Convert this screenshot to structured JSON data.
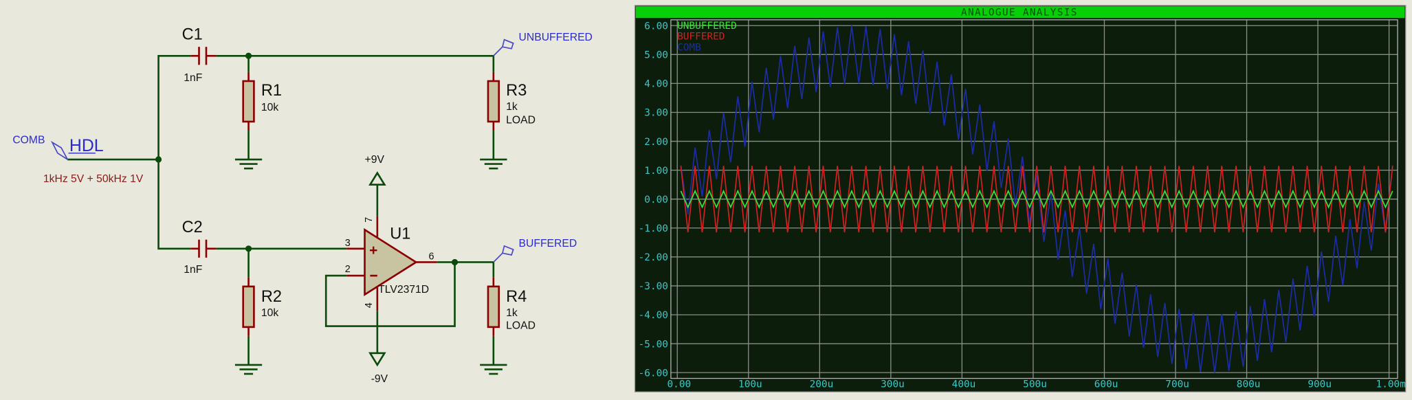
{
  "schematic": {
    "components": [
      {
        "ref": "C1",
        "value": "1nF"
      },
      {
        "ref": "R1",
        "value": "10k"
      },
      {
        "ref": "R3",
        "value": "1k",
        "note": "LOAD"
      },
      {
        "ref": "C2",
        "value": "1nF"
      },
      {
        "ref": "R2",
        "value": "10k"
      },
      {
        "ref": "U1",
        "value": "TLV2371D",
        "pins": [
          "7",
          "3",
          "2",
          "6",
          "4"
        ]
      },
      {
        "ref": "R4",
        "value": "1k",
        "note": "LOAD"
      }
    ],
    "terminals": [
      "UNBUFFERED",
      "BUFFERED",
      "+9V",
      "-9V"
    ],
    "generator": {
      "name": "COMB",
      "type": "HDL",
      "spec": "1kHz 5V + 50kHz 1V"
    }
  },
  "chart_data": {
    "type": "line",
    "title": "ANALOGUE ANALYSIS",
    "x": [
      5,
      15,
      25,
      35,
      45,
      55,
      65,
      75,
      85,
      95,
      105,
      115,
      125,
      135,
      145,
      155,
      165,
      175,
      185,
      195,
      205,
      215,
      225,
      235,
      245,
      255,
      265,
      275,
      285,
      295,
      305,
      315,
      325,
      335,
      345,
      355,
      365,
      375,
      385,
      395,
      405,
      415,
      425,
      435,
      445,
      455,
      465,
      475,
      485,
      495,
      505,
      515,
      525,
      535,
      545,
      555,
      565,
      575,
      585,
      595,
      605,
      615,
      625,
      635,
      645,
      655,
      665,
      675,
      685,
      695,
      705,
      715,
      725,
      735,
      745,
      755,
      765,
      775,
      785,
      795,
      805,
      815,
      825,
      835,
      845,
      855,
      865,
      875,
      885,
      895,
      905,
      915,
      925,
      935,
      945,
      955,
      965,
      975,
      985,
      995,
      1005
    ],
    "xlim": [
      -9,
      1012
    ],
    "xticks": [
      {
        "value": 0,
        "label": "0.00"
      },
      {
        "value": 100,
        "label": "100u"
      },
      {
        "value": 200,
        "label": "200u"
      },
      {
        "value": 300,
        "label": "300u"
      },
      {
        "value": 400,
        "label": "400u"
      },
      {
        "value": 500,
        "label": "500u"
      },
      {
        "value": 600,
        "label": "600u"
      },
      {
        "value": 700,
        "label": "700u"
      },
      {
        "value": 800,
        "label": "800u"
      },
      {
        "value": 900,
        "label": "900u"
      },
      {
        "value": 1000,
        "label": "1.00m"
      }
    ],
    "ylim": [
      -6.2,
      6.2
    ],
    "yticks": [
      {
        "value": 6,
        "label": "6.00"
      },
      {
        "value": 5,
        "label": "5.00"
      },
      {
        "value": 4,
        "label": "4.00"
      },
      {
        "value": 3,
        "label": "3.00"
      },
      {
        "value": 2,
        "label": "2.00"
      },
      {
        "value": 1,
        "label": "1.00"
      },
      {
        "value": 0,
        "label": "0.00"
      },
      {
        "value": -1,
        "label": "-1.00"
      },
      {
        "value": -2,
        "label": "-2.00"
      },
      {
        "value": -3,
        "label": "-3.00"
      },
      {
        "value": -4,
        "label": "-4.00"
      },
      {
        "value": -5,
        "label": "-5.00"
      },
      {
        "value": -6,
        "label": "-6.00"
      }
    ],
    "grid": true,
    "series": [
      {
        "name": "UNBUFFERED",
        "color": "#3ce03c",
        "values": [
          0.28,
          -0.28,
          0.28,
          -0.28,
          0.28,
          -0.28,
          0.28,
          -0.28,
          0.28,
          -0.28,
          0.28,
          -0.28,
          0.28,
          -0.28,
          0.28,
          -0.28,
          0.28,
          -0.28,
          0.28,
          -0.28,
          0.28,
          -0.28,
          0.28,
          -0.28,
          0.28,
          -0.28,
          0.28,
          -0.28,
          0.28,
          -0.28,
          0.28,
          -0.28,
          0.28,
          -0.28,
          0.28,
          -0.28,
          0.28,
          -0.28,
          0.28,
          -0.28,
          0.28,
          -0.28,
          0.28,
          -0.28,
          0.28,
          -0.28,
          0.28,
          -0.28,
          0.28,
          -0.28,
          0.28,
          -0.28,
          0.28,
          -0.28,
          0.28,
          -0.28,
          0.28,
          -0.28,
          0.28,
          -0.28,
          0.28,
          -0.28,
          0.28,
          -0.28,
          0.28,
          -0.28,
          0.28,
          -0.28,
          0.28,
          -0.28,
          0.28,
          -0.28,
          0.28,
          -0.28,
          0.28,
          -0.28,
          0.28,
          -0.28,
          0.28,
          -0.28,
          0.28,
          -0.28,
          0.28,
          -0.28,
          0.28,
          -0.28,
          0.28,
          -0.28,
          0.28,
          -0.28,
          0.28,
          -0.28,
          0.28,
          -0.28,
          0.28,
          -0.28,
          0.28,
          -0.28,
          0.28,
          -0.28,
          0.28
        ]
      },
      {
        "name": "BUFFERED",
        "color": "#d42020",
        "values": [
          1.15,
          -1.15,
          1.15,
          -1.15,
          1.15,
          -1.15,
          1.15,
          -1.15,
          1.15,
          -1.15,
          1.15,
          -1.15,
          1.15,
          -1.15,
          1.15,
          -1.15,
          1.15,
          -1.15,
          1.15,
          -1.15,
          1.15,
          -1.15,
          1.15,
          -1.15,
          1.15,
          -1.15,
          1.15,
          -1.15,
          1.15,
          -1.15,
          1.15,
          -1.15,
          1.15,
          -1.15,
          1.15,
          -1.15,
          1.15,
          -1.15,
          1.15,
          -1.15,
          1.15,
          -1.15,
          1.15,
          -1.15,
          1.15,
          -1.15,
          1.15,
          -1.15,
          1.15,
          -1.15,
          1.15,
          -1.15,
          1.15,
          -1.15,
          1.15,
          -1.15,
          1.15,
          -1.15,
          1.15,
          -1.15,
          1.15,
          -1.15,
          1.15,
          -1.15,
          1.15,
          -1.15,
          1.15,
          -1.15,
          1.15,
          -1.15,
          1.15,
          -1.15,
          1.15,
          -1.15,
          1.15,
          -1.15,
          1.15,
          -1.15,
          1.15,
          -1.15,
          1.15,
          -1.15,
          1.15,
          -1.15,
          1.15,
          -1.15,
          1.15,
          -1.15,
          1.15,
          -1.15,
          1.15,
          -1.15,
          1.15,
          -1.15,
          1.15,
          -1.15,
          1.15,
          -1.15,
          1.15,
          -1.15,
          1.15
        ]
      },
      {
        "name": "COMB",
        "color": "#1c2ca8",
        "values": [
          1.16,
          -0.53,
          1.78,
          0.09,
          2.39,
          0.69,
          2.99,
          1.27,
          3.55,
          1.81,
          4.06,
          2.31,
          4.54,
          2.75,
          4.95,
          3.14,
          5.3,
          3.46,
          5.59,
          3.7,
          5.8,
          3.88,
          5.94,
          3.98,
          6,
          4,
          5.98,
          3.94,
          5.88,
          3.8,
          5.7,
          3.59,
          5.46,
          3.3,
          5.14,
          2.95,
          4.75,
          2.54,
          4.31,
          2.06,
          3.81,
          1.55,
          3.27,
          0.99,
          2.69,
          0.39,
          2.09,
          -0.22,
          1.47,
          -0.84,
          0.84,
          -1.47,
          0.22,
          -2.09,
          -0.39,
          -2.69,
          -0.99,
          -3.27,
          -1.55,
          -3.81,
          -2.06,
          -4.31,
          -2.54,
          -4.75,
          -2.95,
          -5.14,
          -3.3,
          -5.46,
          -3.59,
          -5.7,
          -3.8,
          -5.88,
          -3.94,
          -5.98,
          -4,
          -6,
          -3.98,
          -5.94,
          -3.88,
          -5.8,
          -3.7,
          -5.59,
          -3.46,
          -5.3,
          -3.14,
          -4.95,
          -2.75,
          -4.54,
          -2.31,
          -4.06,
          -1.81,
          -3.55,
          -1.27,
          -2.99,
          -0.69,
          -2.39,
          -0.09,
          -1.78,
          0.53,
          -1.16,
          1.16
        ]
      }
    ]
  }
}
